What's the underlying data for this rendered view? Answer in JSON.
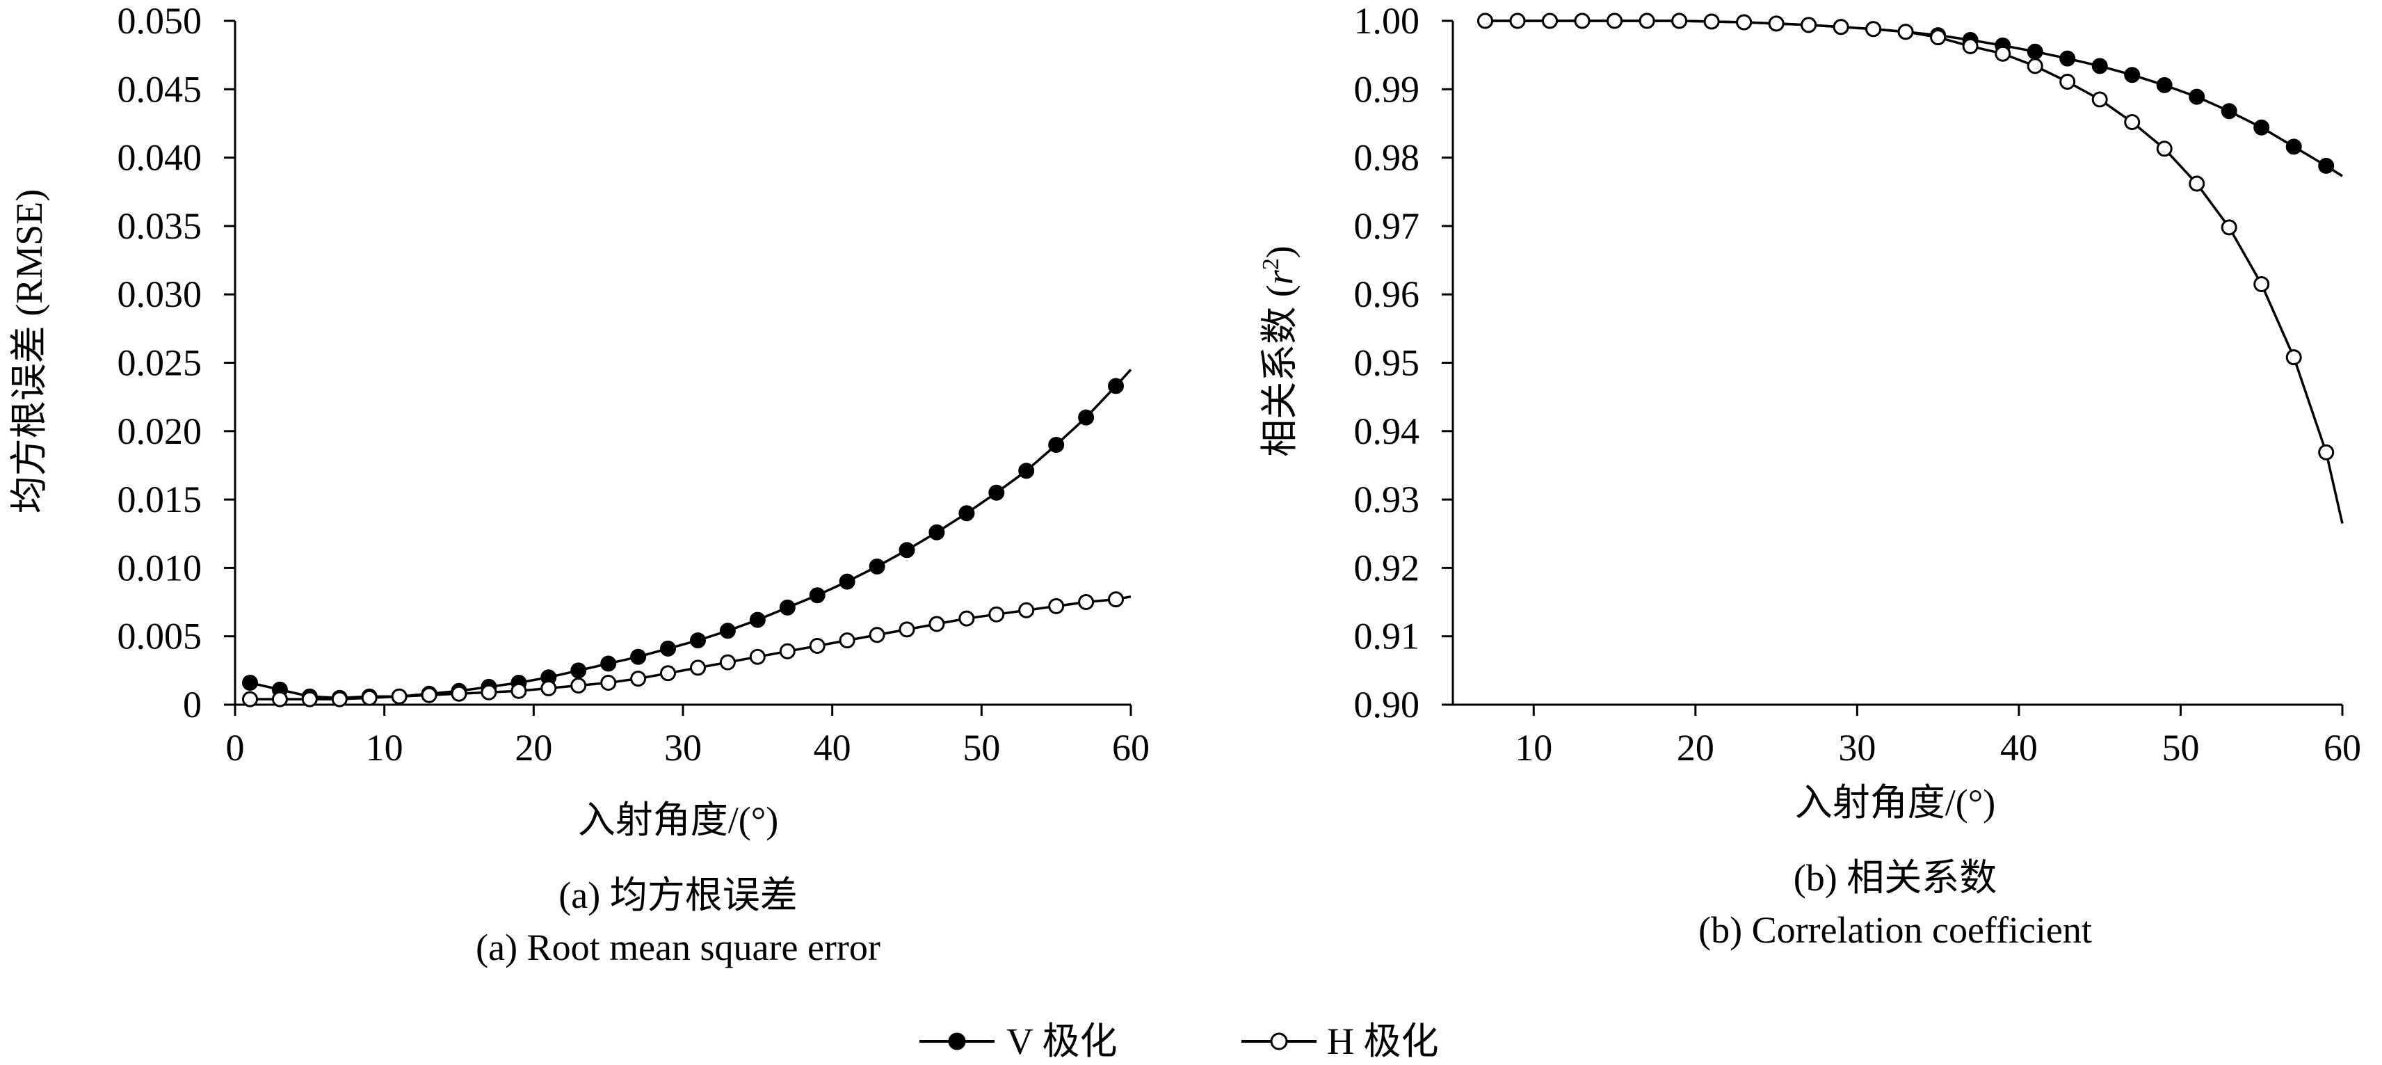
{
  "chart_data": [
    {
      "type": "line",
      "panel": "a",
      "ylabel": "均方根误差 (RMSE)",
      "xlabel": "入射角度/(°)",
      "caption_zh": "(a) 均方根误差",
      "caption_en": "(a) Root mean square error",
      "xlim": [
        0,
        60
      ],
      "ylim": [
        0,
        0.05
      ],
      "x_ticks": [
        0,
        10,
        20,
        30,
        40,
        50,
        60
      ],
      "x_tick_labels": [
        "0",
        "10",
        "20",
        "30",
        "40",
        "50",
        "60"
      ],
      "y_ticks": [
        0,
        0.005,
        0.01,
        0.015,
        0.02,
        0.025,
        0.03,
        0.035,
        0.04,
        0.045,
        0.05
      ],
      "y_tick_labels": [
        "0",
        "0.005",
        "0.010",
        "0.015",
        "0.020",
        "0.025",
        "0.030",
        "0.035",
        "0.040",
        "0.045",
        "0.050"
      ],
      "x": [
        1,
        3,
        5,
        7,
        9,
        11,
        13,
        15,
        17,
        19,
        21,
        23,
        25,
        27,
        29,
        31,
        33,
        35,
        37,
        39,
        41,
        43,
        45,
        47,
        49,
        51,
        53,
        55,
        57,
        59
      ],
      "series": [
        {
          "name": "V 极化",
          "marker": "filled",
          "values": [
            0.0016,
            0.0011,
            0.0006,
            0.0005,
            0.0006,
            0.0006,
            0.0008,
            0.001,
            0.0013,
            0.0016,
            0.002,
            0.0025,
            0.003,
            0.0035,
            0.0041,
            0.0047,
            0.0054,
            0.0062,
            0.0071,
            0.008,
            0.009,
            0.0101,
            0.0113,
            0.0126,
            0.014,
            0.0155,
            0.0171,
            0.019,
            0.021,
            0.0233
          ],
          "line_end": [
            60,
            0.0245
          ]
        },
        {
          "name": "H 极化",
          "marker": "hollow",
          "values": [
            0.0004,
            0.0004,
            0.0004,
            0.0004,
            0.0005,
            0.0006,
            0.0007,
            0.0008,
            0.0009,
            0.001,
            0.0012,
            0.0014,
            0.0016,
            0.0019,
            0.0023,
            0.0027,
            0.0031,
            0.0035,
            0.0039,
            0.0043,
            0.0047,
            0.0051,
            0.0055,
            0.0059,
            0.0063,
            0.0066,
            0.0069,
            0.0072,
            0.0075,
            0.0077
          ],
          "line_end": [
            60,
            0.0079
          ]
        }
      ]
    },
    {
      "type": "line",
      "panel": "b",
      "ylabel_main": "相关系数 (",
      "ylabel_var": "r",
      "ylabel_sup": "2",
      "ylabel_close": ")",
      "xlabel": "入射角度/(°)",
      "caption_zh": "(b) 相关系数",
      "caption_en": "(b) Correlation coefficient",
      "xlim": [
        5,
        60
      ],
      "ylim": [
        0.9,
        1.0
      ],
      "x_ticks": [
        10,
        20,
        30,
        40,
        50,
        60
      ],
      "x_tick_labels": [
        "10",
        "20",
        "30",
        "40",
        "50",
        "60"
      ],
      "y_ticks": [
        0.9,
        0.91,
        0.92,
        0.93,
        0.94,
        0.95,
        0.96,
        0.97,
        0.98,
        0.99,
        1.0
      ],
      "y_tick_labels": [
        "0.90",
        "0.91",
        "0.92",
        "0.93",
        "0.94",
        "0.95",
        "0.96",
        "0.97",
        "0.98",
        "0.99",
        "1.00"
      ],
      "x": [
        7,
        9,
        11,
        13,
        15,
        17,
        19,
        21,
        23,
        25,
        27,
        29,
        31,
        33,
        35,
        37,
        39,
        41,
        43,
        45,
        47,
        49,
        51,
        53,
        55,
        57,
        59
      ],
      "series": [
        {
          "name": "V 极化",
          "marker": "filled",
          "values": [
            1.0,
            1.0,
            1.0,
            1.0,
            1.0,
            1.0,
            1.0,
            0.9999,
            0.9998,
            0.9996,
            0.9994,
            0.9991,
            0.9988,
            0.9984,
            0.9979,
            0.9972,
            0.9964,
            0.9955,
            0.9945,
            0.9934,
            0.9921,
            0.9906,
            0.9889,
            0.9868,
            0.9844,
            0.9816,
            0.9788
          ],
          "line_end": [
            60,
            0.9773
          ]
        },
        {
          "name": "H 极化",
          "marker": "hollow",
          "values": [
            1.0,
            1.0,
            1.0,
            1.0,
            1.0,
            1.0,
            1.0,
            0.9999,
            0.9998,
            0.9996,
            0.9994,
            0.9991,
            0.9988,
            0.9984,
            0.9976,
            0.9963,
            0.9952,
            0.9934,
            0.9911,
            0.9885,
            0.9852,
            0.9813,
            0.9762,
            0.9698,
            0.9615,
            0.9508,
            0.9369
          ],
          "line_end": [
            60,
            0.9265
          ]
        }
      ]
    }
  ],
  "legend": {
    "items": [
      {
        "label": "V 极化",
        "marker": "filled"
      },
      {
        "label": "H 极化",
        "marker": "hollow"
      }
    ],
    "placement": "bottom-center"
  }
}
